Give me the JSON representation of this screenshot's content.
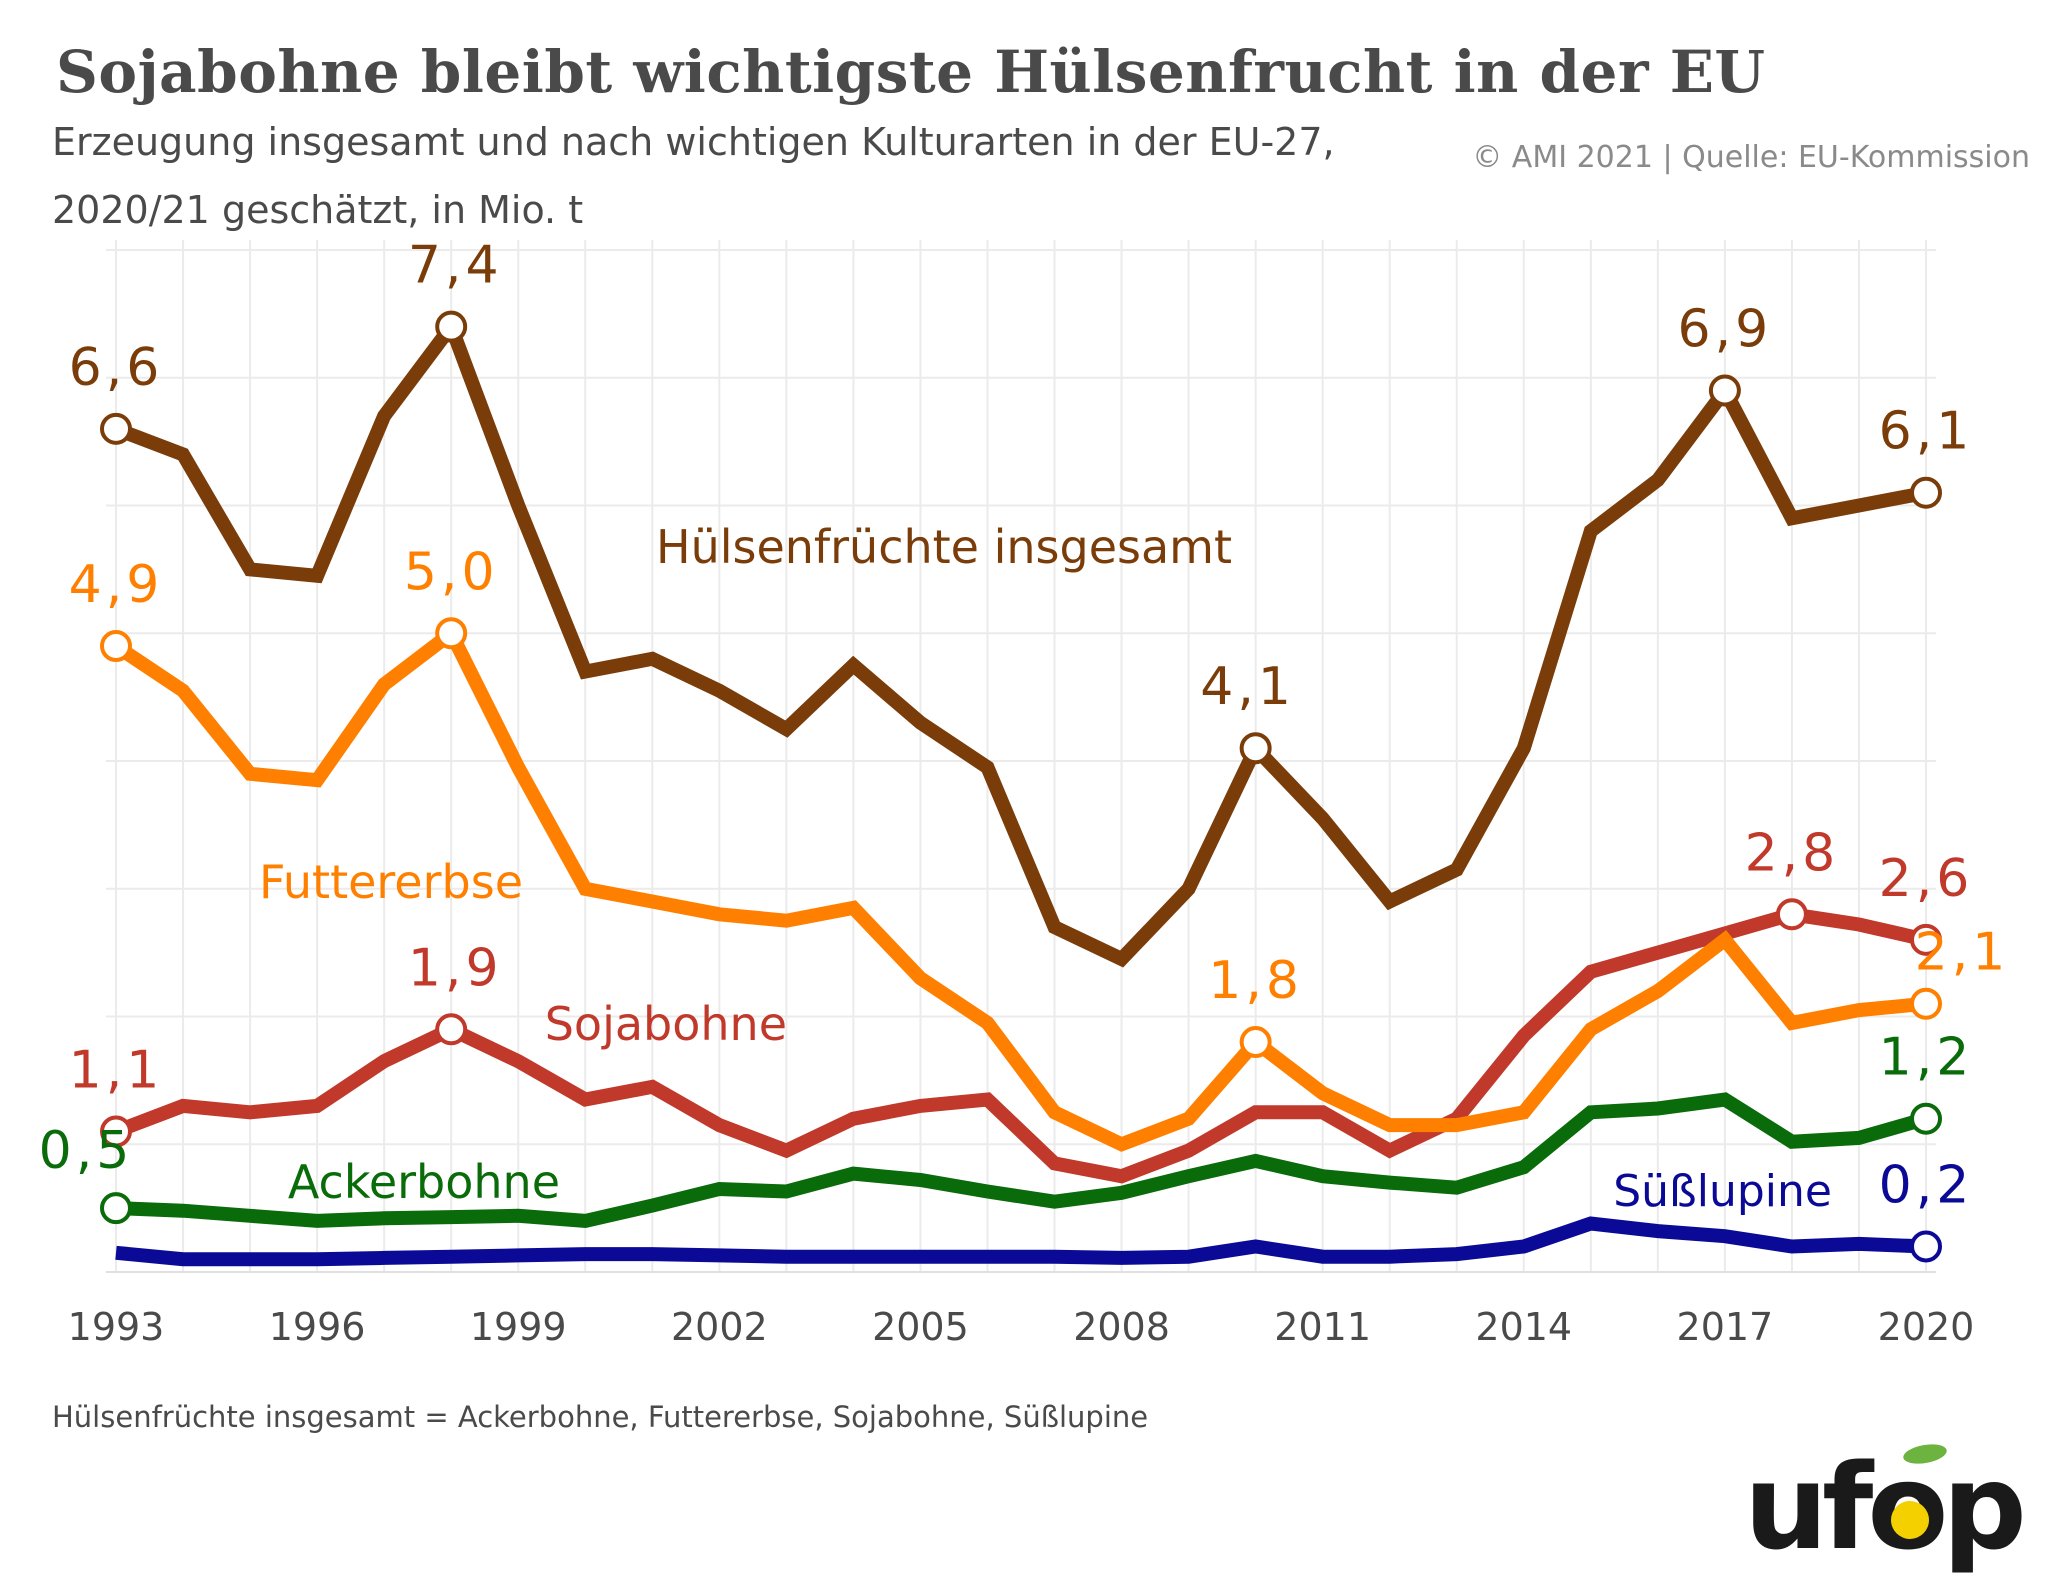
{
  "title": "Sojabohne bleibt wichtigste Hülsenfrucht in der EU",
  "subtitle_line1": "Erzeugung insgesamt und nach wichtigen Kulturarten in der EU-27,",
  "subtitle_line2": "2020/21 geschätzt, in Mio. t",
  "copyright": "© AMI 2021 | Quelle: EU-Kommission",
  "footnote": "Hülsenfrüchte insgesamt = Ackerbohne, Futtererbse, Sojabohne, Süßlupine",
  "logo_text": "ufop",
  "chart_data": {
    "type": "line",
    "x": [
      1993,
      1994,
      1995,
      1996,
      1997,
      1998,
      1999,
      2000,
      2001,
      2002,
      2003,
      2004,
      2005,
      2006,
      2007,
      2008,
      2009,
      2010,
      2011,
      2012,
      2013,
      2014,
      2015,
      2016,
      2017,
      2018,
      2019,
      2020
    ],
    "x_ticks": [
      "1993",
      "1996",
      "1999",
      "2002",
      "2005",
      "2008",
      "2011",
      "2014",
      "2017",
      "2020"
    ],
    "ylim": [
      0,
      8
    ],
    "grid": true,
    "series": [
      {
        "name": "Hülsenfrüchte insgesamt",
        "color": "#7a3d0a",
        "values": [
          6.6,
          6.4,
          5.5,
          5.45,
          6.7,
          7.4,
          6.0,
          4.7,
          4.8,
          4.55,
          4.25,
          4.75,
          4.3,
          3.95,
          2.7,
          2.45,
          3.0,
          4.1,
          3.55,
          2.9,
          3.15,
          4.1,
          5.8,
          6.2,
          6.9,
          5.9,
          6.0,
          6.1
        ],
        "labels": [
          {
            "x": 1993,
            "text": "6,6"
          },
          {
            "x": 1998,
            "text": "7,4"
          },
          {
            "x": 2010,
            "text": "4,1"
          },
          {
            "x": 2017,
            "text": "6,9"
          },
          {
            "x": 2020,
            "text": "6,1"
          }
        ]
      },
      {
        "name": "Futtererbse",
        "color": "#ff8000",
        "values": [
          4.9,
          4.55,
          3.9,
          3.85,
          4.6,
          5.0,
          3.95,
          3.0,
          2.9,
          2.8,
          2.75,
          2.85,
          2.3,
          1.95,
          1.25,
          1.0,
          1.2,
          1.8,
          1.4,
          1.15,
          1.15,
          1.25,
          1.9,
          2.2,
          2.6,
          1.95,
          2.05,
          2.1
        ],
        "labels": [
          {
            "x": 1993,
            "text": "4,9"
          },
          {
            "x": 1998,
            "text": "5,0"
          },
          {
            "x": 2010,
            "text": "1,8"
          },
          {
            "x": 2020,
            "text": "2,1"
          }
        ]
      },
      {
        "name": "Sojabohne",
        "color": "#c0392b",
        "values": [
          1.1,
          1.3,
          1.25,
          1.3,
          1.65,
          1.9,
          1.65,
          1.35,
          1.45,
          1.15,
          0.95,
          1.2,
          1.3,
          1.35,
          0.85,
          0.75,
          0.95,
          1.25,
          1.25,
          0.95,
          1.2,
          1.85,
          2.35,
          2.5,
          2.65,
          2.8,
          2.72,
          2.6
        ],
        "labels": [
          {
            "x": 1993,
            "text": "1,1"
          },
          {
            "x": 1998,
            "text": "1,9"
          },
          {
            "x": 2018,
            "text": "2,8"
          },
          {
            "x": 2020,
            "text": "2,6"
          }
        ]
      },
      {
        "name": "Ackerbohne",
        "color": "#0a6b0a",
        "values": [
          0.5,
          0.48,
          0.44,
          0.4,
          0.42,
          0.43,
          0.44,
          0.4,
          0.52,
          0.65,
          0.63,
          0.77,
          0.72,
          0.63,
          0.55,
          0.62,
          0.75,
          0.87,
          0.75,
          0.7,
          0.66,
          0.82,
          1.25,
          1.28,
          1.35,
          1.02,
          1.05,
          1.2
        ],
        "labels": [
          {
            "x": 1993,
            "text": "0,5"
          },
          {
            "x": 2020,
            "text": "1,2"
          }
        ]
      },
      {
        "name": "Süßlupine",
        "color": "#0a0a96",
        "values": [
          0.15,
          0.1,
          0.1,
          0.1,
          0.11,
          0.12,
          0.13,
          0.14,
          0.14,
          0.13,
          0.12,
          0.12,
          0.12,
          0.12,
          0.12,
          0.11,
          0.12,
          0.2,
          0.12,
          0.12,
          0.14,
          0.2,
          0.38,
          0.32,
          0.28,
          0.2,
          0.22,
          0.2
        ],
        "labels": [
          {
            "x": 2020,
            "text": "0,2"
          }
        ]
      }
    ]
  }
}
